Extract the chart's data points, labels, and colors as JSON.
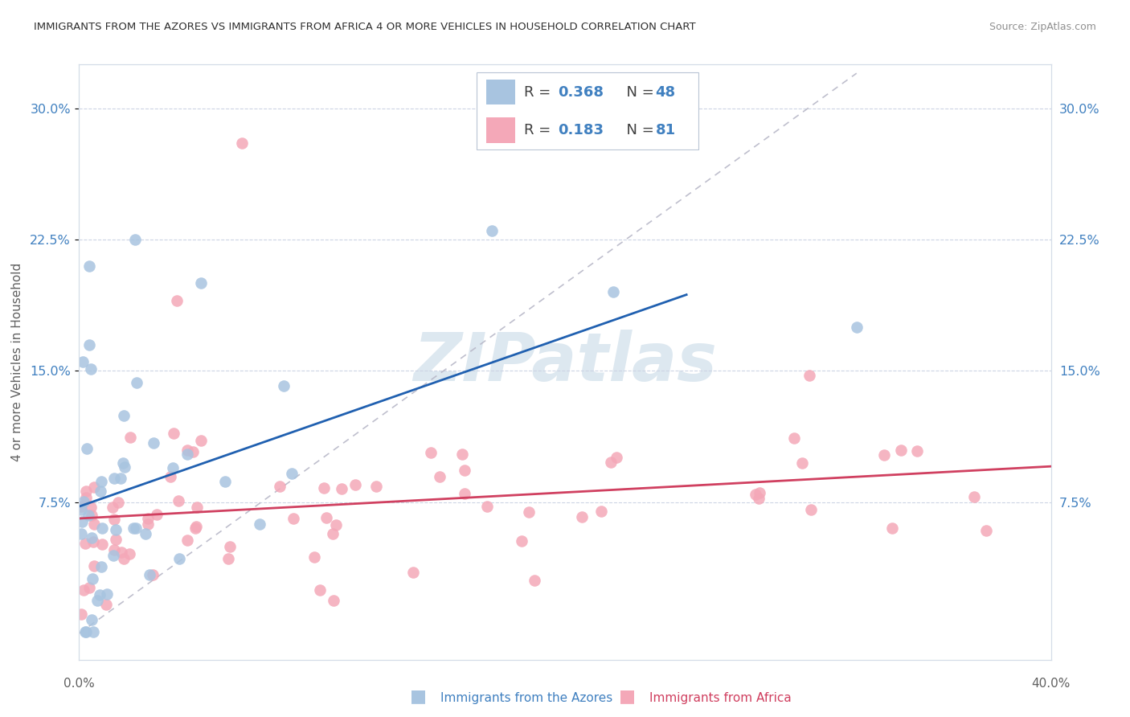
{
  "title": "IMMIGRANTS FROM THE AZORES VS IMMIGRANTS FROM AFRICA 4 OR MORE VEHICLES IN HOUSEHOLD CORRELATION CHART",
  "source": "Source: ZipAtlas.com",
  "ylabel": "4 or more Vehicles in Household",
  "ytick_vals": [
    0.075,
    0.15,
    0.225,
    0.3
  ],
  "ytick_labels": [
    "7.5%",
    "15.0%",
    "22.5%",
    "30.0%"
  ],
  "xlim": [
    0.0,
    0.4
  ],
  "ylim": [
    -0.015,
    0.325
  ],
  "footer_blue": "Immigrants from the Azores",
  "footer_pink": "Immigrants from Africa",
  "blue_scatter_color": "#a8c4e0",
  "pink_scatter_color": "#f4a8b8",
  "blue_line_color": "#2060b0",
  "pink_line_color": "#d04060",
  "diag_line_color": "#b8b8c8",
  "R_blue": 0.368,
  "N_blue": 48,
  "R_pink": 0.183,
  "N_pink": 81,
  "accent_color": "#4080c0"
}
